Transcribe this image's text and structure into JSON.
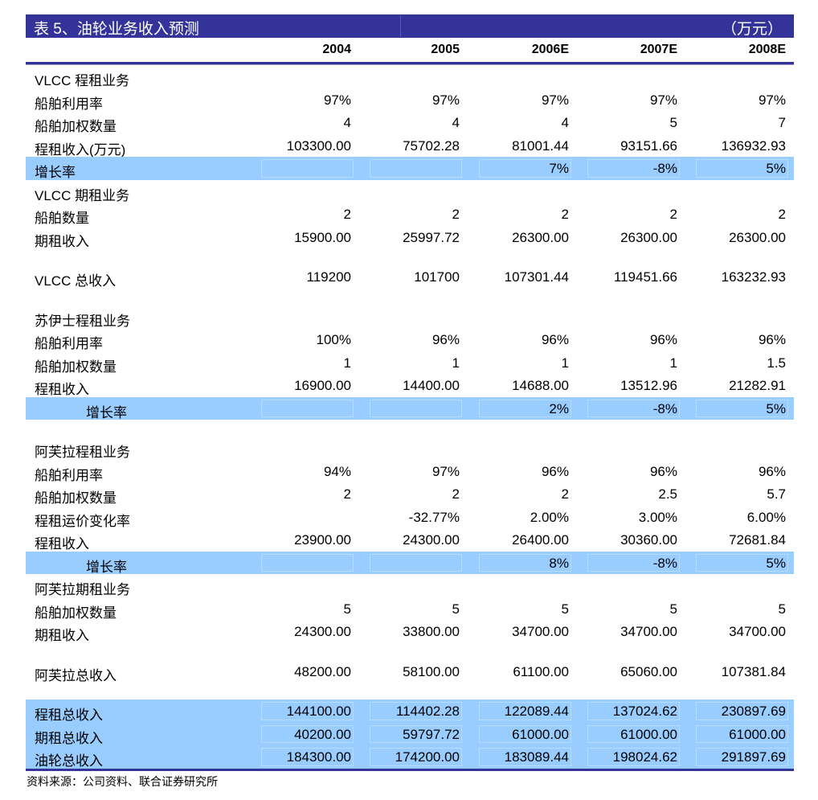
{
  "title": "表 5、油轮业务收入预测",
  "unit": "（万元）",
  "columns": [
    "2004",
    "2005",
    "2006E",
    "2007E",
    "2008E"
  ],
  "rows": [
    {
      "label": "VLCC 程租业务",
      "values": [
        "",
        "",
        "",
        "",
        ""
      ]
    },
    {
      "label": "船舶利用率",
      "values": [
        "97%",
        "97%",
        "97%",
        "97%",
        "97%"
      ]
    },
    {
      "label": "船舶加权数量",
      "values": [
        "4",
        "4",
        "4",
        "5",
        "7"
      ]
    },
    {
      "label": "程租收入(万元)",
      "values": [
        "103300.00",
        "75702.28",
        "81001.44",
        "93151.66",
        "136932.93"
      ]
    },
    {
      "label": "增长率",
      "highlight": true,
      "values": [
        "",
        "",
        "7%",
        "-8%",
        "5%"
      ]
    },
    {
      "label": "VLCC 期租业务",
      "values": [
        "",
        "",
        "",
        "",
        ""
      ]
    },
    {
      "label": "船舶数量",
      "values": [
        "2",
        "2",
        "2",
        "2",
        "2"
      ]
    },
    {
      "label": "期租收入",
      "values": [
        "15900.00",
        "25997.72",
        "26300.00",
        "26300.00",
        "26300.00"
      ]
    },
    {
      "spacer": true
    },
    {
      "label": "VLCC 总收入",
      "values": [
        "119200",
        "101700",
        "107301.44",
        "119451.66",
        "163232.93"
      ]
    },
    {
      "spacer": true
    },
    {
      "label": "苏伊士程租业务",
      "values": [
        "",
        "",
        "",
        "",
        ""
      ]
    },
    {
      "label": "船舶利用率",
      "values": [
        "100%",
        "96%",
        "96%",
        "96%",
        "96%"
      ]
    },
    {
      "label": "船舶加权数量",
      "values": [
        "1",
        "1",
        "1",
        "1",
        "1.5"
      ]
    },
    {
      "label": "程租收入",
      "values": [
        "16900.00",
        "14400.00",
        "14688.00",
        "13512.96",
        "21282.91"
      ]
    },
    {
      "label": "增长率",
      "highlight": true,
      "indent": true,
      "values": [
        "",
        "",
        "2%",
        "-8%",
        "5%"
      ]
    },
    {
      "spacer": true
    },
    {
      "label": "阿芙拉程租业务",
      "values": [
        "",
        "",
        "",
        "",
        ""
      ]
    },
    {
      "label": "船舶利用率",
      "values": [
        "94%",
        "97%",
        "96%",
        "96%",
        "96%"
      ]
    },
    {
      "label": "船舶加权数量",
      "values": [
        "2",
        "2",
        "2",
        "2.5",
        "5.7"
      ]
    },
    {
      "label": "程租运价变化率",
      "values": [
        "",
        "-32.77%",
        "2.00%",
        "3.00%",
        "6.00%"
      ]
    },
    {
      "label": "程租收入",
      "values": [
        "23900.00",
        "24300.00",
        "26400.00",
        "30360.00",
        "72681.84"
      ]
    },
    {
      "label": "增长率",
      "highlight": true,
      "indent": true,
      "values": [
        "",
        "",
        "8%",
        "-8%",
        "5%"
      ]
    },
    {
      "label": "阿芙拉期租业务",
      "values": [
        "",
        "",
        "",
        "",
        ""
      ]
    },
    {
      "label": "船舶加权数量",
      "values": [
        "5",
        "5",
        "5",
        "5",
        "5"
      ]
    },
    {
      "label": "期租收入",
      "values": [
        "24300.00",
        "33800.00",
        "34700.00",
        "34700.00",
        "34700.00"
      ]
    },
    {
      "spacer": true
    },
    {
      "label": "阿芙拉总收入",
      "values": [
        "48200.00",
        "58100.00",
        "61100.00",
        "65060.00",
        "107381.84"
      ]
    },
    {
      "spacer": true
    },
    {
      "label": "程租总收入",
      "highlight": true,
      "values": [
        "144100.00",
        "114402.28",
        "122089.44",
        "137024.62",
        "230897.69"
      ]
    },
    {
      "label": "期租总收入",
      "highlight": true,
      "values": [
        "40200.00",
        "59797.72",
        "61000.00",
        "61000.00",
        "61000.00"
      ]
    },
    {
      "label": "油轮总收入",
      "highlight": true,
      "values": [
        "184300.00",
        "174200.00",
        "183089.44",
        "198024.62",
        "291897.69"
      ]
    }
  ],
  "source": "资料来源：公司资料、联合证券研究所",
  "colors": {
    "title_bar": "#333399",
    "highlight": "#99ccff"
  }
}
